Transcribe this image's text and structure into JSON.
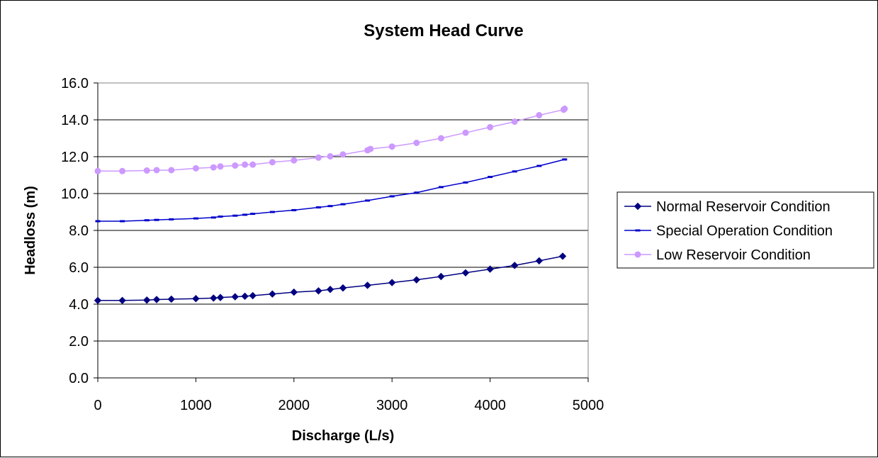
{
  "chart_data": {
    "type": "line",
    "title": "System Head Curve",
    "xlabel": "Discharge (L/s)",
    "ylabel": "Headloss (m)",
    "xlim": [
      0,
      5000
    ],
    "ylim": [
      0,
      16
    ],
    "x_ticks": [
      "0",
      "1000",
      "2000",
      "3000",
      "4000",
      "5000"
    ],
    "y_ticks": [
      "0.0",
      "2.0",
      "4.0",
      "6.0",
      "8.0",
      "10.0",
      "12.0",
      "14.0",
      "16.0"
    ],
    "grid": "horizontal major gridlines",
    "legend_position": "right",
    "series": [
      {
        "name": "Normal Reservoir Condition",
        "color": "#000080",
        "marker": "diamond",
        "x": [
          0,
          250,
          500,
          600,
          750,
          1000,
          1180,
          1250,
          1400,
          1500,
          1580,
          1780,
          2000,
          2250,
          2370,
          2500,
          2750,
          3000,
          3250,
          3500,
          3750,
          4000,
          4250,
          4500,
          4740
        ],
        "y": [
          4.2,
          4.2,
          4.22,
          4.25,
          4.27,
          4.3,
          4.33,
          4.36,
          4.4,
          4.43,
          4.46,
          4.55,
          4.65,
          4.72,
          4.8,
          4.88,
          5.02,
          5.17,
          5.32,
          5.5,
          5.7,
          5.9,
          6.1,
          6.35,
          6.6
        ]
      },
      {
        "name": "Special Operation Condition",
        "color": "#0000CC",
        "marker": "dash",
        "x": [
          0,
          250,
          500,
          600,
          750,
          1000,
          1180,
          1250,
          1400,
          1500,
          1580,
          1780,
          2000,
          2250,
          2370,
          2500,
          2750,
          3000,
          3250,
          3500,
          3750,
          4000,
          4250,
          4500,
          4760
        ],
        "y": [
          8.5,
          8.5,
          8.55,
          8.57,
          8.6,
          8.65,
          8.7,
          8.75,
          8.8,
          8.85,
          8.9,
          9.0,
          9.1,
          9.25,
          9.32,
          9.42,
          9.62,
          9.85,
          10.05,
          10.35,
          10.6,
          10.9,
          11.2,
          11.5,
          11.85
        ]
      },
      {
        "name": "Low Reservoir Condition",
        "color": "#CC99FF",
        "marker": "circle",
        "x": [
          0,
          250,
          500,
          600,
          750,
          1000,
          1180,
          1250,
          1400,
          1500,
          1580,
          1780,
          2000,
          2250,
          2370,
          2500,
          2750,
          2780,
          3000,
          3250,
          3500,
          3750,
          4000,
          4250,
          4500,
          4750,
          4760
        ],
        "y": [
          11.22,
          11.22,
          11.25,
          11.27,
          11.27,
          11.37,
          11.42,
          11.47,
          11.52,
          11.57,
          11.57,
          11.7,
          11.8,
          11.95,
          12.02,
          12.12,
          12.35,
          12.42,
          12.55,
          12.75,
          13.0,
          13.3,
          13.6,
          13.9,
          14.25,
          14.55,
          14.6
        ]
      }
    ]
  }
}
